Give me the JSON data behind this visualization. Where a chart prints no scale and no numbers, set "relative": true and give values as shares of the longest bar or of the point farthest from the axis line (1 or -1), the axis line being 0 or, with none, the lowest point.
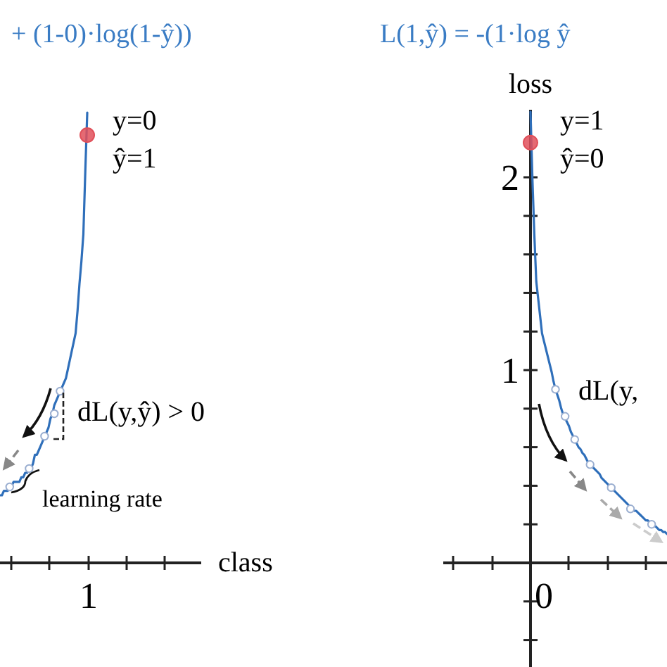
{
  "chart_data": [
    {
      "type": "line",
      "title": "+ (1-0)·log(1-ŷ))",
      "xlabel": "class",
      "relative": true,
      "categories": [
        null,
        null,
        null,
        null,
        null,
        null,
        null,
        null,
        null,
        null,
        null,
        null,
        null,
        null,
        null,
        null,
        null,
        null,
        null,
        null,
        null,
        null,
        null,
        null,
        null,
        null,
        null,
        null,
        null,
        null,
        null,
        null,
        null,
        null,
        null,
        null,
        null,
        null,
        null,
        null,
        null,
        null,
        null,
        null,
        null,
        null
      ],
      "annotations": [
        "y=0",
        "ŷ=1",
        "dL(y,ŷ) > 0",
        "learning rate",
        "1"
      ],
      "series": [
        {
          "color": "#2f6fba",
          "values": [
            0.15,
            0.15,
            0.16,
            0.16,
            0.16,
            0.17,
            0.17,
            0.18,
            0.18,
            0.18,
            0.18,
            0.19,
            0.19,
            0.2,
            0.2,
            0.21,
            0.21,
            0.22,
            0.24,
            0.24,
            0.25,
            0.26,
            0.27,
            0.28,
            0.29,
            0.3,
            0.32,
            0.33,
            0.35,
            0.36,
            0.37,
            0.38,
            0.39,
            0.4,
            0.41,
            0.43,
            0.45,
            0.47,
            0.49,
            0.51,
            0.56,
            0.62,
            0.67,
            0.73,
            0.87,
            1
          ]
        }
      ]
    },
    {
      "type": "line",
      "title": "L(1,ŷ) = -(1·log ŷ",
      "ylabel": "loss",
      "tick_labels": "y",
      "ylim": [
        -0.55,
        2.35
      ],
      "categories": [
        null,
        null,
        null,
        null,
        null,
        null,
        null,
        null,
        null,
        null,
        null,
        null,
        null,
        null,
        null,
        null,
        null,
        null,
        null,
        null,
        null,
        null,
        null,
        null,
        null,
        null,
        null,
        null,
        null,
        null,
        null,
        null,
        null,
        null,
        null,
        null,
        null,
        null,
        null,
        null,
        null,
        null,
        null,
        null,
        null,
        null,
        null,
        null,
        null,
        null,
        null,
        null,
        null,
        null,
        null,
        null,
        null,
        null,
        null,
        null,
        null,
        null,
        null,
        null,
        null,
        null,
        null,
        null,
        null,
        null,
        null,
        null
      ],
      "yticks": [
        {
          "value": -0.4,
          "label": null
        },
        {
          "value": -0.2,
          "label": null
        },
        {
          "value": 0.2,
          "label": null
        },
        {
          "value": 0.4,
          "label": null
        },
        {
          "value": 0.6,
          "label": null
        },
        {
          "value": 0.8,
          "label": null
        },
        1,
        {
          "value": 1.2,
          "label": null
        },
        {
          "value": 1.4,
          "label": null
        },
        {
          "value": 1.6,
          "label": null
        },
        {
          "value": 1.8,
          "label": null
        },
        2
      ],
      "annotations": [
        "y=1",
        "ŷ=0",
        "dL(y,",
        "0"
      ],
      "series": [
        {
          "color": "#2f6fba",
          "values": [
            2.34,
            1.99,
            1.7,
            1.46,
            1.37,
            1.28,
            1.19,
            1.15,
            1.11,
            1.07,
            1.03,
            0.99,
            0.94,
            0.9,
            0.87,
            0.84,
            0.8,
            0.77,
            0.75,
            0.73,
            0.71,
            0.68,
            0.66,
            0.64,
            0.62,
            0.6,
            0.59,
            0.57,
            0.56,
            0.54,
            0.52,
            0.51,
            0.5,
            0.49,
            0.48,
            0.47,
            0.46,
            0.44,
            0.43,
            0.42,
            0.41,
            0.4,
            0.39,
            0.38,
            0.37,
            0.36,
            0.35,
            0.34,
            0.33,
            0.32,
            0.31,
            0.3,
            0.29,
            0.28,
            0.27,
            0.27,
            0.26,
            0.25,
            0.24,
            0.23,
            0.22,
            0.22,
            0.21,
            0.2,
            0.19,
            0.19,
            0.18,
            0.17,
            0.17,
            0.16,
            0.16,
            0.15
          ]
        },
        {
          "type": "scatter",
          "marker": "circle",
          "color": "#e0505a",
          "values": [
            2.18,
            null,
            null,
            null,
            null,
            null,
            null,
            null,
            null,
            null,
            null,
            null,
            null,
            null,
            null,
            null,
            null,
            null,
            null,
            null,
            null,
            null,
            null,
            null,
            null,
            null,
            null,
            null,
            null,
            null,
            null,
            null,
            null,
            null,
            null,
            null,
            null,
            null,
            null,
            null,
            null,
            null,
            null,
            null,
            null,
            null,
            null,
            null,
            null,
            null,
            null,
            null,
            null,
            null,
            null,
            null,
            null,
            null,
            null,
            null,
            null,
            null,
            null,
            null,
            null,
            null,
            null,
            null,
            null,
            null,
            null,
            null
          ]
        },
        {
          "type": "scatter",
          "marker": "circle",
          "color": "#9aaed0",
          "values": [
            null,
            null,
            null,
            null,
            null,
            null,
            null,
            null,
            null,
            null,
            null,
            null,
            null,
            0.9,
            null,
            null,
            null,
            null,
            0.76,
            null,
            null,
            null,
            null,
            0.64,
            null,
            null,
            null,
            null,
            null,
            null,
            null,
            0.51,
            null,
            null,
            null,
            null,
            null,
            null,
            null,
            null,
            null,
            null,
            0.39,
            null,
            null,
            null,
            null,
            null,
            null,
            null,
            null,
            null,
            0.28,
            null,
            null,
            null,
            null,
            null,
            null,
            null,
            null,
            null,
            null,
            0.2,
            null,
            null,
            null,
            null,
            null,
            null,
            null,
            null
          ]
        }
      ]
    }
  ]
}
